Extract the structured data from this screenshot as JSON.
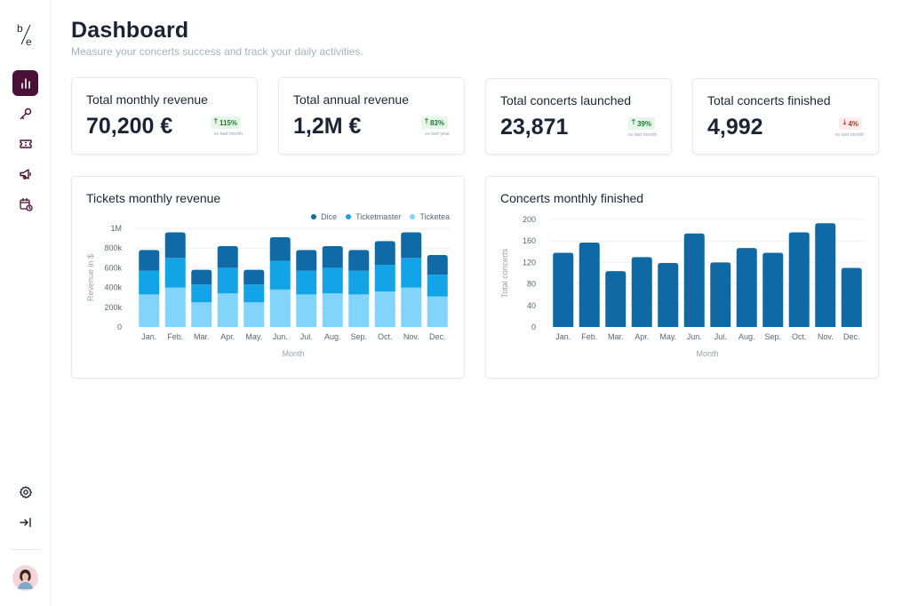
{
  "sidebar": {
    "logo": "b/e",
    "nav": [
      {
        "icon": "bar-chart-icon",
        "active": true
      },
      {
        "icon": "key-icon",
        "active": false
      },
      {
        "icon": "ticket-icon",
        "active": false
      },
      {
        "icon": "megaphone-icon",
        "active": false
      },
      {
        "icon": "calendar-clock-icon",
        "active": false
      }
    ],
    "bottom": [
      {
        "icon": "gear-icon"
      },
      {
        "icon": "collapse-arrow-icon"
      }
    ]
  },
  "header": {
    "title": "Dashboard",
    "subtitle": "Measure your concerts success and track your daily activities."
  },
  "kpis": [
    {
      "title": "Total monthly revenue",
      "value": "70,200 €",
      "trend": "up",
      "badge": "115%",
      "note": "vs last month"
    },
    {
      "title": "Total annual revenue",
      "value": "1,2M €",
      "trend": "up",
      "badge": "83%",
      "note": "vs last year"
    },
    {
      "title": "Total concerts launched",
      "value": "23,871",
      "trend": "up",
      "badge": "39%",
      "note": "vs last month"
    },
    {
      "title": "Total concerts finished",
      "value": "4,992",
      "trend": "down",
      "badge": "4%",
      "note": "vs last month"
    }
  ],
  "colors": {
    "brand": "#4a1038",
    "dice": "#0f6aa6",
    "ticketmaster": "#12a4e6",
    "ticketea": "#83d4fa",
    "bar": "#0e69a5",
    "up": "#1b7a35",
    "down": "#c62b2b"
  },
  "chart_data": [
    {
      "type": "bar",
      "stacked": true,
      "title": "Tickets monthly revenue",
      "xlabel": "Month",
      "ylabel": "Revenue in $",
      "categories": [
        "Jan.",
        "Feb.",
        "Mar.",
        "Apr.",
        "May.",
        "Jun.",
        "Jul.",
        "Aug.",
        "Sep.",
        "Oct.",
        "Nov.",
        "Dec."
      ],
      "yticks": [
        "0",
        "200k",
        "400k",
        "600k",
        "800k",
        "1M"
      ],
      "ylim": [
        0,
        1000000
      ],
      "grid": true,
      "legend_position": "top-right",
      "series": [
        {
          "name": "Ticketea",
          "values": [
            330000,
            400000,
            250000,
            340000,
            250000,
            380000,
            330000,
            340000,
            330000,
            360000,
            400000,
            310000
          ]
        },
        {
          "name": "Ticketmaster",
          "values": [
            240000,
            300000,
            180000,
            260000,
            180000,
            290000,
            240000,
            260000,
            240000,
            270000,
            300000,
            220000
          ]
        },
        {
          "name": "Dice",
          "values": [
            210000,
            260000,
            150000,
            220000,
            150000,
            240000,
            210000,
            220000,
            210000,
            240000,
            260000,
            200000
          ]
        }
      ]
    },
    {
      "type": "bar",
      "title": "Concerts monthly finished",
      "xlabel": "Month",
      "ylabel": "Total concerts",
      "categories": [
        "Jan.",
        "Feb.",
        "Mar.",
        "Apr.",
        "May.",
        "Jun.",
        "Jul.",
        "Aug.",
        "Sep.",
        "Oct.",
        "Nov.",
        "Dec."
      ],
      "yticks": [
        "0",
        "40",
        "80",
        "120",
        "160",
        "200"
      ],
      "ylim": [
        0,
        200
      ],
      "grid": true,
      "series": [
        {
          "values": [
            138,
            157,
            104,
            130,
            119,
            174,
            120,
            147,
            138,
            176,
            193,
            110
          ]
        }
      ]
    }
  ]
}
